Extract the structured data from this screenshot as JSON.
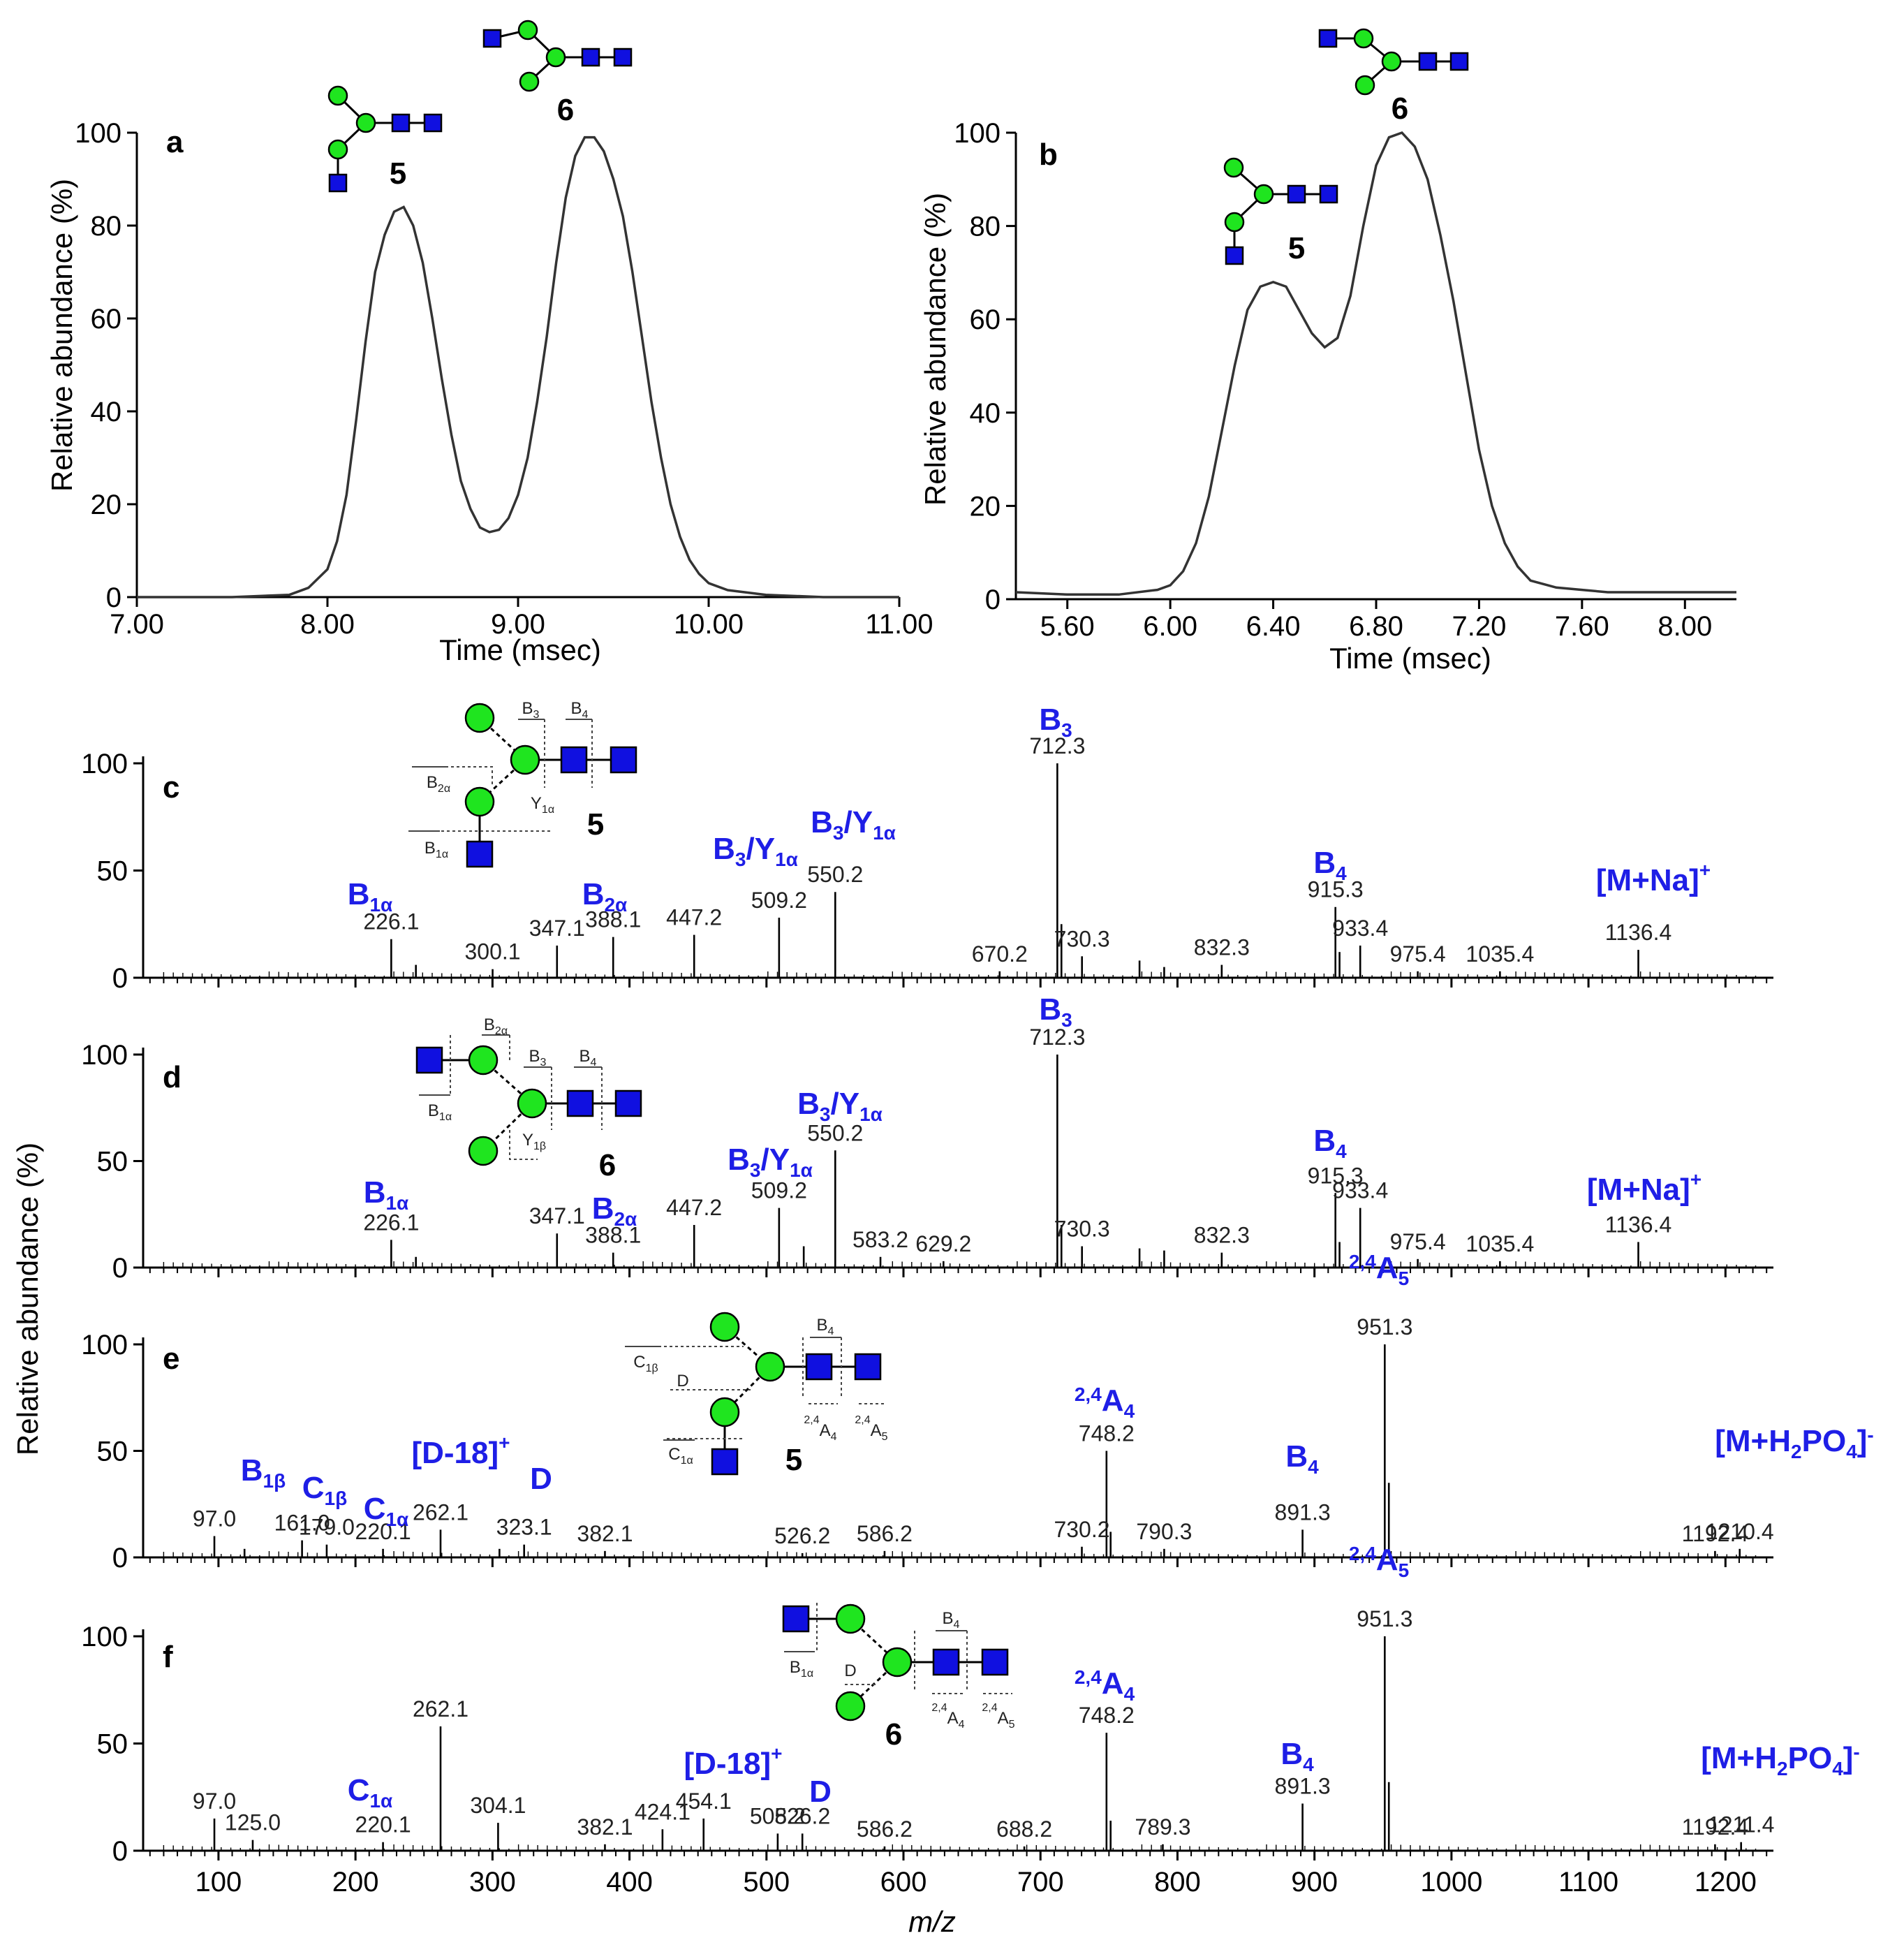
{
  "chart_data": [
    {
      "panel": "a",
      "type": "line",
      "xlabel": "Time (msec)",
      "ylabel": "Relative abundance (%)",
      "xlim": [
        7.0,
        11.0
      ],
      "ylim": [
        0,
        100
      ],
      "xticks": [
        "7.00",
        "8.00",
        "9.00",
        "10.00",
        "11.00"
      ],
      "yticks": [
        "0",
        "20",
        "40",
        "60",
        "80",
        "100"
      ],
      "x": [
        7.0,
        7.5,
        7.8,
        7.9,
        8.0,
        8.05,
        8.1,
        8.15,
        8.2,
        8.25,
        8.3,
        8.35,
        8.4,
        8.45,
        8.5,
        8.55,
        8.6,
        8.65,
        8.7,
        8.75,
        8.8,
        8.85,
        8.9,
        8.95,
        9.0,
        9.05,
        9.1,
        9.15,
        9.2,
        9.25,
        9.3,
        9.35,
        9.4,
        9.45,
        9.5,
        9.55,
        9.6,
        9.65,
        9.7,
        9.75,
        9.8,
        9.85,
        9.9,
        9.95,
        10.0,
        10.1,
        10.3,
        10.6,
        11.0
      ],
      "values": [
        0,
        0,
        0.5,
        2,
        6,
        12,
        22,
        38,
        55,
        70,
        78,
        83,
        84,
        80,
        72,
        60,
        47,
        35,
        25,
        19,
        15,
        14,
        14.5,
        17,
        22,
        30,
        42,
        56,
        72,
        86,
        95,
        99,
        99,
        96,
        90,
        82,
        70,
        56,
        42,
        30,
        20,
        13,
        8,
        5,
        3,
        1.5,
        0.5,
        0,
        0
      ],
      "annotations": [
        "5",
        "6"
      ]
    },
    {
      "panel": "b",
      "type": "line",
      "xlabel": "Time (msec)",
      "ylabel": "Relative abundance (%)",
      "xlim": [
        5.4,
        8.2
      ],
      "ylim": [
        0,
        100
      ],
      "xticks": [
        "5.60",
        "6.00",
        "6.40",
        "6.80",
        "7.20",
        "7.60",
        "8.00"
      ],
      "yticks": [
        "0",
        "20",
        "40",
        "60",
        "80",
        "100"
      ],
      "x": [
        5.4,
        5.6,
        5.8,
        5.95,
        6.0,
        6.05,
        6.1,
        6.15,
        6.2,
        6.25,
        6.3,
        6.35,
        6.4,
        6.45,
        6.5,
        6.55,
        6.6,
        6.65,
        6.7,
        6.75,
        6.8,
        6.85,
        6.9,
        6.95,
        7.0,
        7.05,
        7.1,
        7.15,
        7.2,
        7.25,
        7.3,
        7.35,
        7.4,
        7.5,
        7.6,
        7.7,
        7.8,
        8.0,
        8.2
      ],
      "values": [
        1.5,
        1.0,
        1.0,
        2,
        3,
        6,
        12,
        22,
        36,
        50,
        62,
        67,
        68,
        67,
        62,
        57,
        54,
        56,
        65,
        80,
        93,
        99,
        100,
        97,
        90,
        78,
        64,
        48,
        32,
        20,
        12,
        7,
        4,
        2.5,
        2,
        1.5,
        1.5,
        1.5,
        1.5
      ],
      "annotations": [
        "5",
        "6"
      ]
    },
    {
      "panel": "c",
      "type": "bar",
      "compound": "5",
      "xlim": [
        45,
        1235
      ],
      "ylim": [
        0,
        100
      ],
      "yticks": [
        "0",
        "50",
        "100"
      ],
      "peaks": [
        {
          "mz": 226.1,
          "y": 18,
          "label": "226.1"
        },
        {
          "mz": 244.1,
          "y": 6
        },
        {
          "mz": 300.1,
          "y": 4,
          "label": "300.1"
        },
        {
          "mz": 347.1,
          "y": 15,
          "label": "347.1"
        },
        {
          "mz": 388.1,
          "y": 19,
          "label": "388.1"
        },
        {
          "mz": 447.2,
          "y": 20,
          "label": "447.2"
        },
        {
          "mz": 509.2,
          "y": 28,
          "label": "509.2"
        },
        {
          "mz": 550.2,
          "y": 40,
          "label": "550.2"
        },
        {
          "mz": 670.2,
          "y": 3,
          "label": "670.2"
        },
        {
          "mz": 712.3,
          "y": 100,
          "label": "712.3"
        },
        {
          "mz": 715.3,
          "y": 25
        },
        {
          "mz": 730.3,
          "y": 10,
          "label": "730.3"
        },
        {
          "mz": 772.3,
          "y": 8
        },
        {
          "mz": 790.3,
          "y": 5
        },
        {
          "mz": 832.3,
          "y": 6,
          "label": "832.3"
        },
        {
          "mz": 915.3,
          "y": 33,
          "label": "915.3"
        },
        {
          "mz": 918.3,
          "y": 12
        },
        {
          "mz": 933.4,
          "y": 15,
          "label": "933.4"
        },
        {
          "mz": 975.4,
          "y": 3,
          "label": "975.4"
        },
        {
          "mz": 1035.4,
          "y": 3,
          "label": "1035.4"
        },
        {
          "mz": 1136.4,
          "y": 13,
          "label": "1136.4"
        }
      ],
      "ions": [
        "B1α",
        "B2α",
        "B3/Y1α",
        "B3/Y1α",
        "B3",
        "B4",
        "[M+Na]+"
      ],
      "fragments": [
        "B3",
        "B4",
        "B2α",
        "Y1α",
        "B1α"
      ]
    },
    {
      "panel": "d",
      "type": "bar",
      "compound": "6",
      "xlim": [
        45,
        1235
      ],
      "ylim": [
        0,
        100
      ],
      "yticks": [
        "0",
        "50",
        "100"
      ],
      "peaks": [
        {
          "mz": 226.1,
          "y": 13,
          "label": "226.1"
        },
        {
          "mz": 244.1,
          "y": 5
        },
        {
          "mz": 347.1,
          "y": 16,
          "label": "347.1"
        },
        {
          "mz": 388.1,
          "y": 7,
          "label": "388.1"
        },
        {
          "mz": 447.2,
          "y": 20,
          "label": "447.2"
        },
        {
          "mz": 509.2,
          "y": 28,
          "label": "509.2"
        },
        {
          "mz": 527.2,
          "y": 10
        },
        {
          "mz": 550.2,
          "y": 55,
          "label": "550.2"
        },
        {
          "mz": 583.2,
          "y": 5,
          "label": "583.2"
        },
        {
          "mz": 629.2,
          "y": 3,
          "label": "629.2"
        },
        {
          "mz": 712.3,
          "y": 100,
          "label": "712.3"
        },
        {
          "mz": 715.3,
          "y": 20
        },
        {
          "mz": 730.3,
          "y": 10,
          "label": "730.3"
        },
        {
          "mz": 772.3,
          "y": 9
        },
        {
          "mz": 790.3,
          "y": 8
        },
        {
          "mz": 832.3,
          "y": 7,
          "label": "832.3"
        },
        {
          "mz": 915.3,
          "y": 35,
          "label": "915.3"
        },
        {
          "mz": 918.3,
          "y": 12
        },
        {
          "mz": 933.4,
          "y": 28,
          "label": "933.4"
        },
        {
          "mz": 975.4,
          "y": 4,
          "label": "975.4"
        },
        {
          "mz": 1035.4,
          "y": 3,
          "label": "1035.4"
        },
        {
          "mz": 1136.4,
          "y": 12,
          "label": "1136.4"
        }
      ],
      "ions": [
        "B1α",
        "B2α",
        "B3/Y1α",
        "B3/Y1α",
        "B3",
        "B4",
        "[M+Na]+"
      ],
      "fragments": [
        "B2α",
        "B3",
        "B4",
        "B1α",
        "Y1β"
      ]
    },
    {
      "panel": "e",
      "type": "bar",
      "compound": "5",
      "xlim": [
        45,
        1235
      ],
      "ylim": [
        0,
        100
      ],
      "yticks": [
        "0",
        "50",
        "100"
      ],
      "peaks": [
        {
          "mz": 97.0,
          "y": 10,
          "label": "97.0"
        },
        {
          "mz": 119.0,
          "y": 4
        },
        {
          "mz": 161.0,
          "y": 8,
          "label": "161.0"
        },
        {
          "mz": 179.0,
          "y": 6,
          "label": "179.0"
        },
        {
          "mz": 220.1,
          "y": 4,
          "label": "220.1"
        },
        {
          "mz": 262.1,
          "y": 13,
          "label": "262.1"
        },
        {
          "mz": 305.1,
          "y": 4
        },
        {
          "mz": 323.1,
          "y": 6,
          "label": "323.1"
        },
        {
          "mz": 382.1,
          "y": 3,
          "label": "382.1"
        },
        {
          "mz": 526.2,
          "y": 2,
          "label": "526.2"
        },
        {
          "mz": 586.2,
          "y": 3,
          "label": "586.2"
        },
        {
          "mz": 730.2,
          "y": 5,
          "label": "730.2"
        },
        {
          "mz": 748.2,
          "y": 50,
          "label": "748.2"
        },
        {
          "mz": 751.2,
          "y": 12
        },
        {
          "mz": 790.3,
          "y": 4,
          "label": "790.3"
        },
        {
          "mz": 891.3,
          "y": 13,
          "label": "891.3"
        },
        {
          "mz": 951.3,
          "y": 100,
          "label": "951.3"
        },
        {
          "mz": 954.3,
          "y": 35
        },
        {
          "mz": 1192.4,
          "y": 3,
          "label": "1192.4"
        },
        {
          "mz": 1210.4,
          "y": 4,
          "label": "1210.4"
        }
      ],
      "ions": [
        "B1β",
        "C1β",
        "C1α",
        "[D-18]+",
        "D",
        "2,4A4",
        "2,4A5",
        "B4",
        "[M+H2PO4]-"
      ],
      "fragments": [
        "B4",
        "C1β",
        "D",
        "2,4A4",
        "2,4A5",
        "C1α"
      ]
    },
    {
      "panel": "f",
      "type": "bar",
      "compound": "6",
      "xlim": [
        45,
        1235
      ],
      "ylim": [
        0,
        100
      ],
      "yticks": [
        "0",
        "50",
        "100"
      ],
      "peaks": [
        {
          "mz": 97.0,
          "y": 15,
          "label": "97.0"
        },
        {
          "mz": 125.0,
          "y": 5,
          "label": "125.0"
        },
        {
          "mz": 220.1,
          "y": 4,
          "label": "220.1"
        },
        {
          "mz": 262.1,
          "y": 58,
          "label": "262.1"
        },
        {
          "mz": 304.1,
          "y": 13,
          "label": "304.1"
        },
        {
          "mz": 382.1,
          "y": 3,
          "label": "382.1"
        },
        {
          "mz": 424.1,
          "y": 10,
          "label": "424.1"
        },
        {
          "mz": 454.1,
          "y": 15,
          "label": "454.1"
        },
        {
          "mz": 508.2,
          "y": 8,
          "label": "508.2"
        },
        {
          "mz": 526.2,
          "y": 8,
          "label": "526.2"
        },
        {
          "mz": 586.2,
          "y": 2,
          "label": "586.2"
        },
        {
          "mz": 688.2,
          "y": 2,
          "label": "688.2"
        },
        {
          "mz": 748.2,
          "y": 55,
          "label": "748.2"
        },
        {
          "mz": 751.2,
          "y": 14
        },
        {
          "mz": 789.3,
          "y": 3,
          "label": "789.3"
        },
        {
          "mz": 891.3,
          "y": 22,
          "label": "891.3"
        },
        {
          "mz": 951.3,
          "y": 100,
          "label": "951.3"
        },
        {
          "mz": 954.3,
          "y": 32
        },
        {
          "mz": 1192.4,
          "y": 3,
          "label": "1192.4"
        },
        {
          "mz": 1211.4,
          "y": 4,
          "label": "1211.4"
        }
      ],
      "ions": [
        "C1α",
        "[D-18]+",
        "D",
        "2,4A4",
        "2,4A5",
        "B4",
        "[M+H2PO4]-"
      ],
      "fragments": [
        "B4",
        "B1α",
        "D",
        "2,4A4",
        "2,4A5"
      ]
    }
  ],
  "shared": {
    "spectra_ylabel": "Relative abundance (%)",
    "xlabel_mz": "m/z",
    "xticks_mz": [
      "100",
      "200",
      "300",
      "400",
      "500",
      "600",
      "700",
      "800",
      "900",
      "1000",
      "1100",
      "1200"
    ]
  },
  "colors": {
    "ion_labels": "#1e1ee6",
    "glucose": "#1fe51f",
    "glcnac": "#1010e0"
  }
}
